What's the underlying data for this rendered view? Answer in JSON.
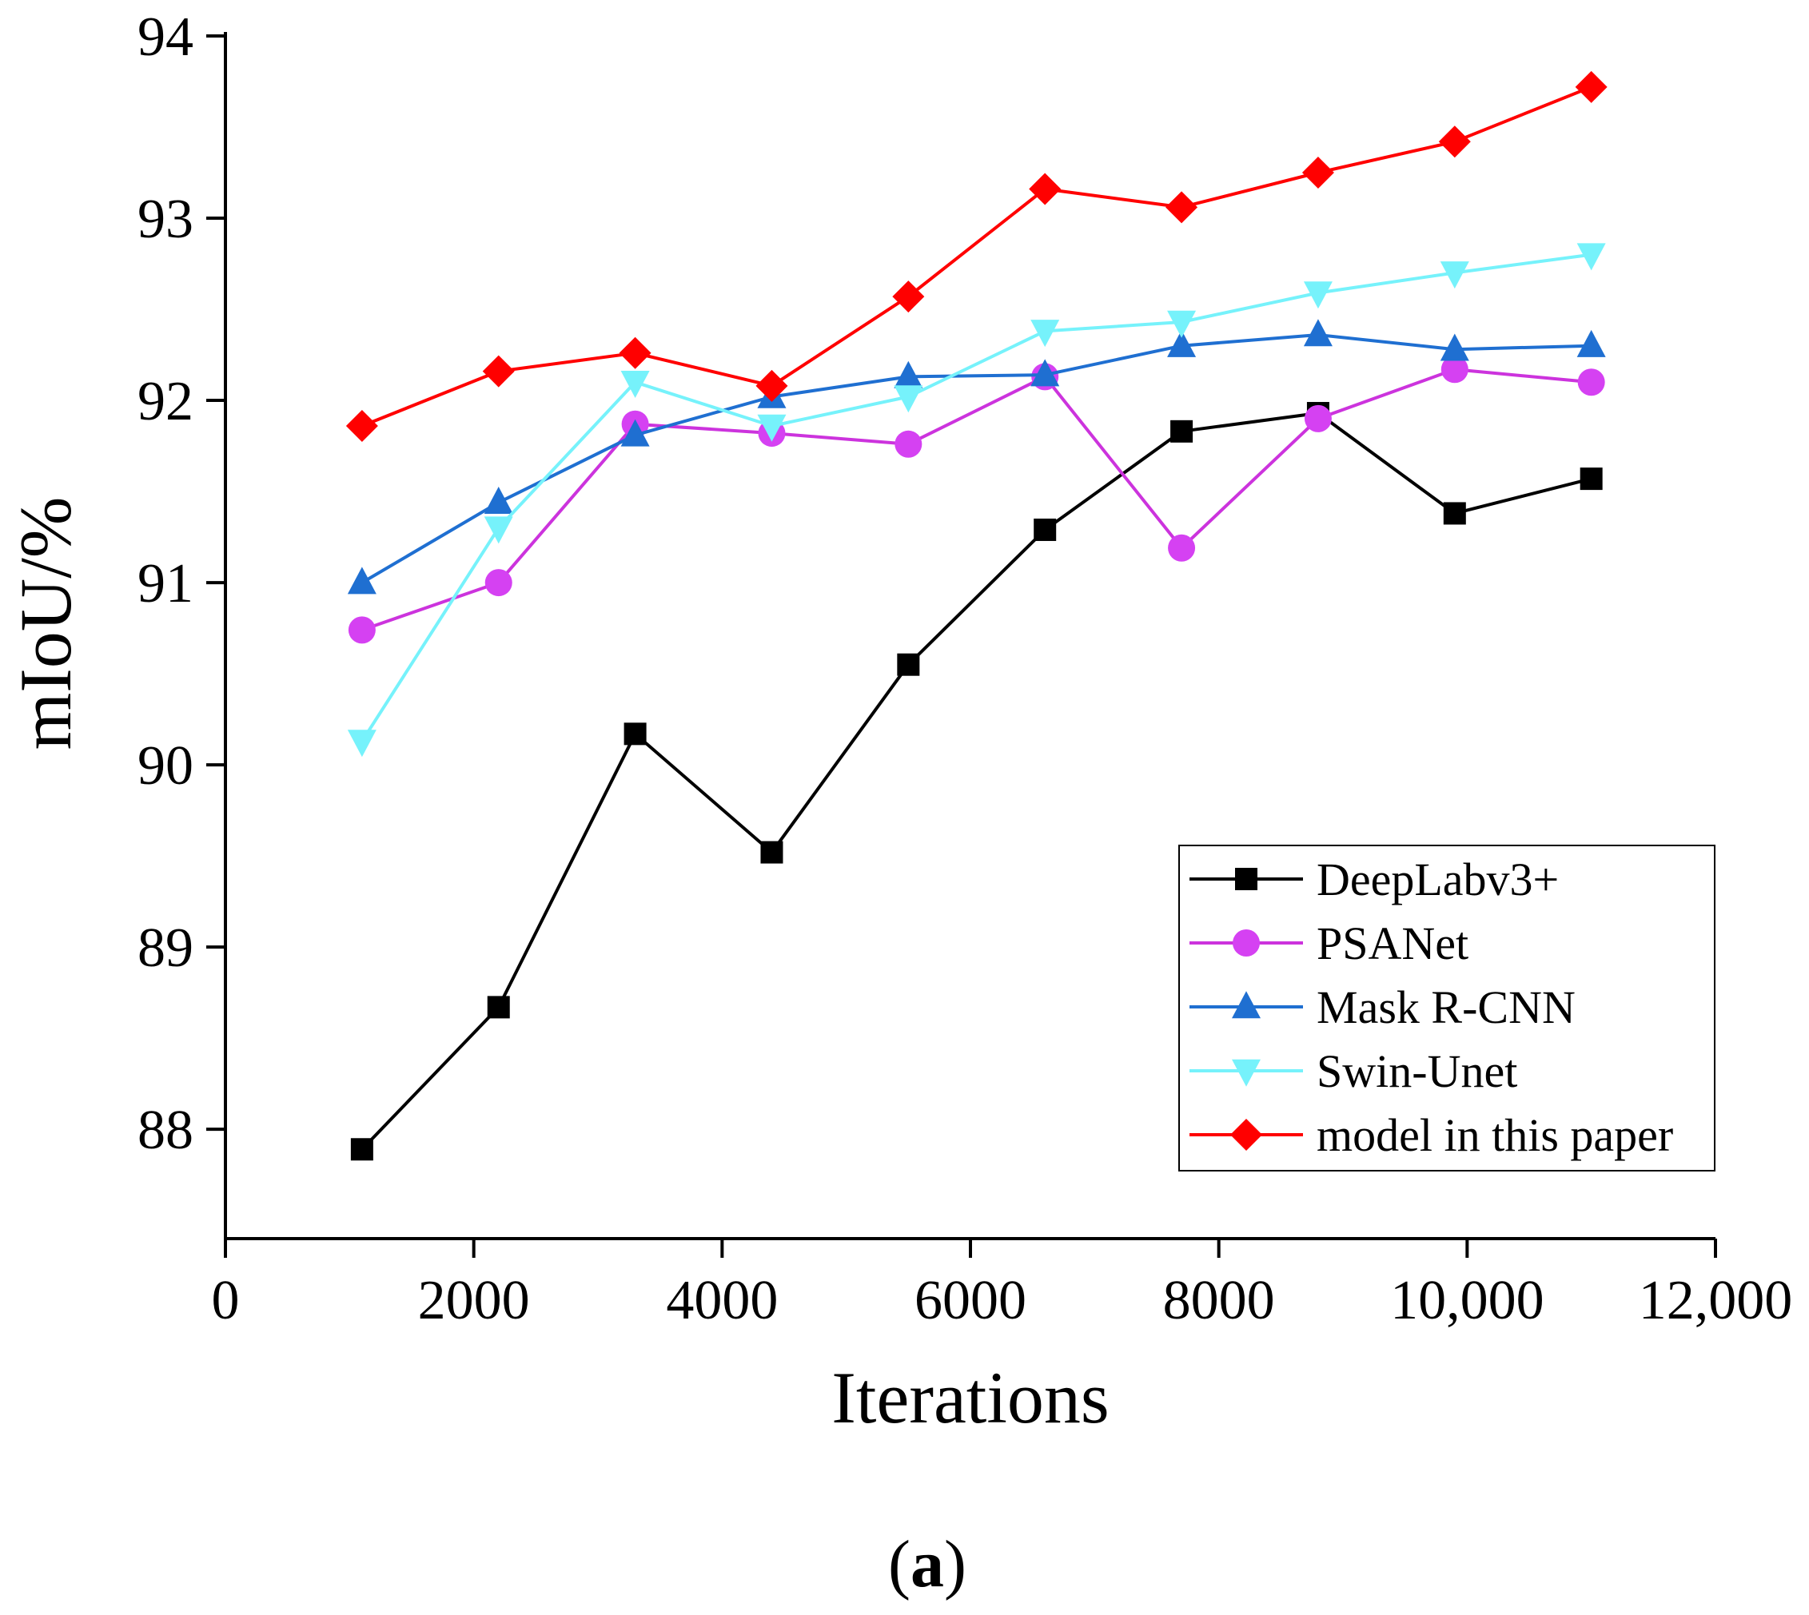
{
  "chart_data": {
    "type": "line",
    "title": "",
    "xlabel": "Iterations",
    "ylabel": "mIoU/%",
    "xlim": [
      0,
      12000
    ],
    "ylim": [
      87.4,
      94
    ],
    "xticks": [
      0,
      2000,
      4000,
      6000,
      8000,
      10000,
      12000
    ],
    "xtick_labels": [
      "0",
      "2000",
      "4000",
      "6000",
      "8000",
      "10,000",
      "12,000"
    ],
    "yticks": [
      88,
      89,
      90,
      91,
      92,
      93,
      94
    ],
    "ytick_labels": [
      "88",
      "89",
      "90",
      "91",
      "92",
      "93",
      "94"
    ],
    "grid": false,
    "legend_position": "bottom-right",
    "x": [
      1100,
      2200,
      3300,
      4400,
      5500,
      6600,
      7700,
      8800,
      9900,
      11000
    ],
    "series": [
      {
        "name": "DeepLabv3+",
        "values": [
          87.89,
          88.67,
          90.17,
          89.52,
          90.55,
          91.29,
          91.83,
          91.93,
          91.38,
          91.57
        ],
        "color": "#000000",
        "marker": "square"
      },
      {
        "name": "PSANet",
        "values": [
          90.74,
          91.0,
          91.87,
          91.82,
          91.76,
          92.13,
          91.19,
          91.9,
          92.17,
          92.1
        ],
        "color": "#cc33dd",
        "marker": "circle",
        "marker_color": "#d541f2"
      },
      {
        "name": "Mask R-CNN",
        "values": [
          91.0,
          91.44,
          91.81,
          92.02,
          92.13,
          92.14,
          92.3,
          92.36,
          92.28,
          92.3
        ],
        "color": "#1f6fd1",
        "marker": "triangle-up"
      },
      {
        "name": "Swin-Unet",
        "values": [
          90.13,
          91.3,
          92.1,
          91.86,
          92.02,
          92.38,
          92.43,
          92.59,
          92.7,
          92.8
        ],
        "color": "#76f2fb",
        "marker": "triangle-down"
      },
      {
        "name": "model in this paper",
        "values": [
          91.86,
          92.16,
          92.26,
          92.08,
          92.57,
          93.16,
          93.06,
          93.25,
          93.42,
          93.72
        ],
        "color": "#ff0000",
        "marker": "diamond"
      }
    ]
  },
  "panel_label": {
    "open": "(",
    "letter": "a",
    "close": ")"
  }
}
